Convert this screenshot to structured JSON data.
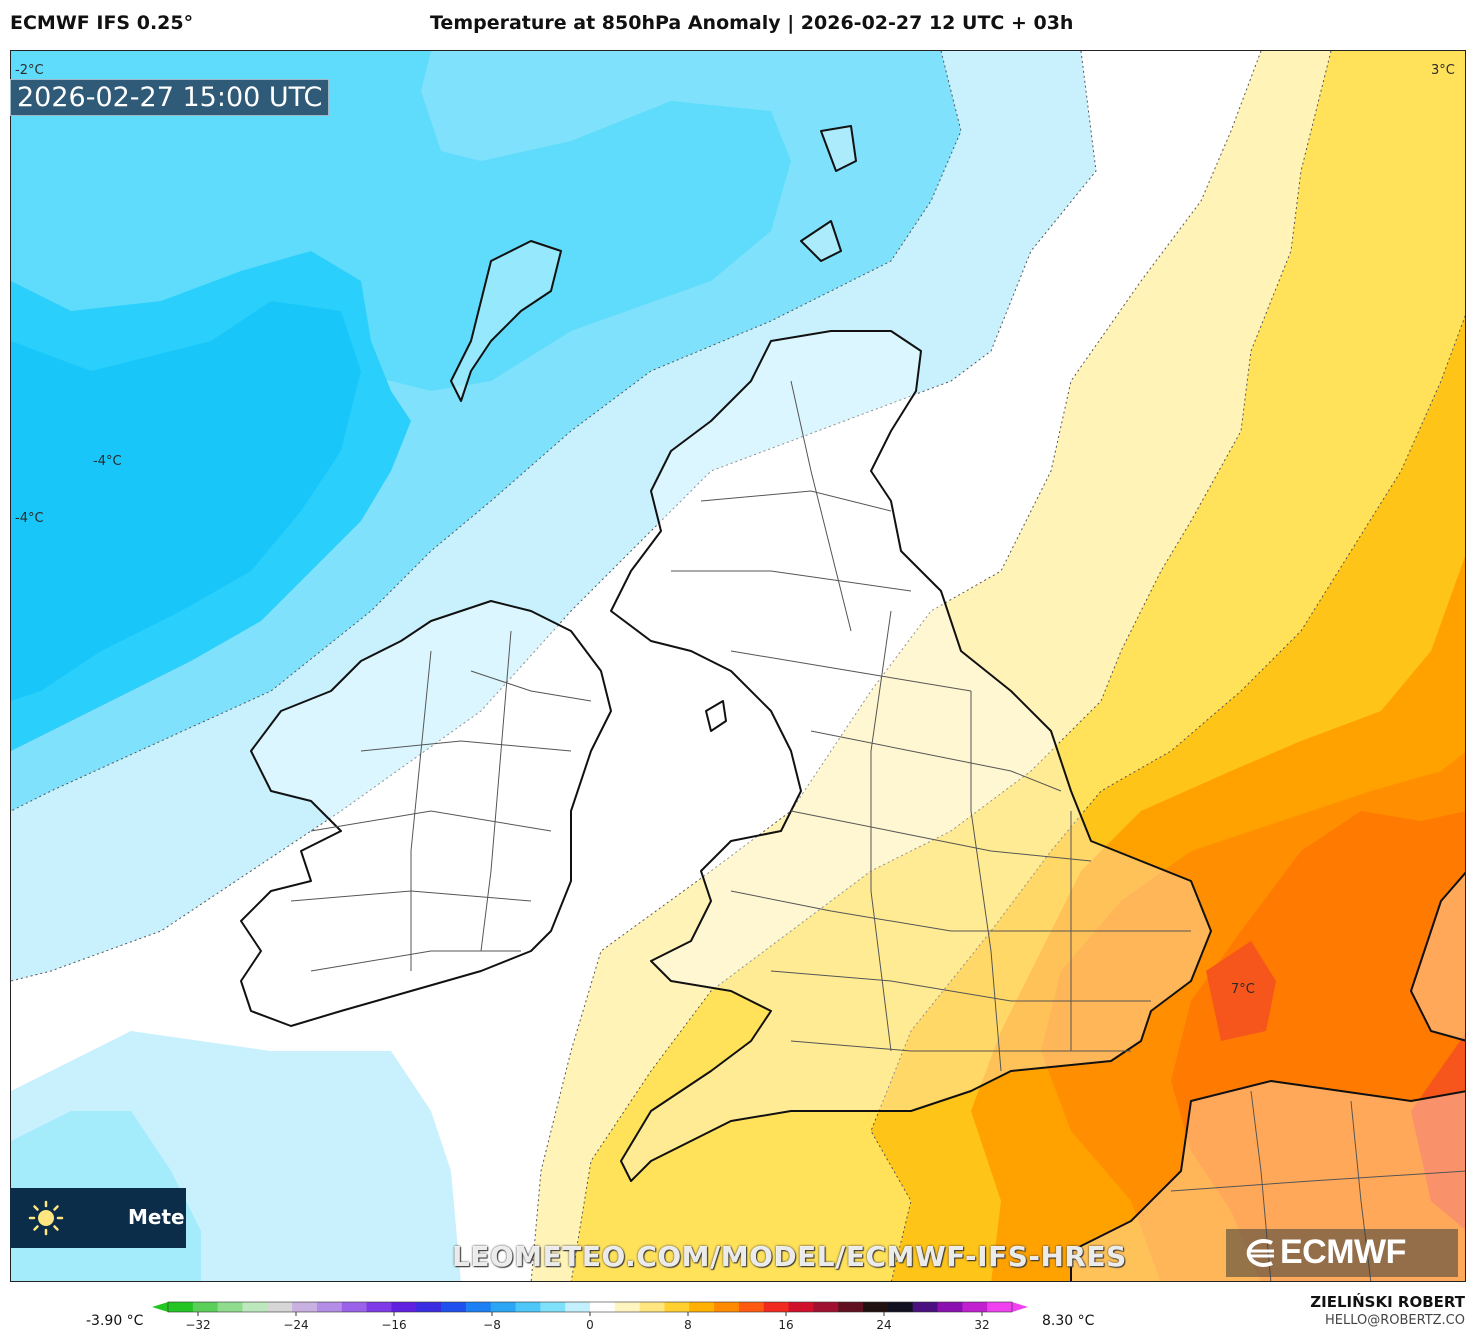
{
  "header": {
    "model": "ECMWF IFS 0.25°",
    "title": "Temperature at 850hPa Anomaly | 2026-02-27 12 UTC + 03h"
  },
  "map": {
    "valid_time": "2026-02-27 15:00 UTC",
    "contour_labels": [
      "-2°C",
      "3°C",
      "-4°C",
      "-4°C",
      "7°C"
    ],
    "watermark": "LEOMETEO.COM/MODEL/ECMWF-IFS-HRES"
  },
  "branding": {
    "box_text": "Meteo",
    "sun_icon": "sun-icon",
    "ecmwf_logo": "ECMWF"
  },
  "colorbar": {
    "min_label": "-3.90 °C",
    "max_label": "8.30 °C",
    "ticks": [
      "−32",
      "−24",
      "−16",
      "−8",
      "0",
      "8",
      "16",
      "24",
      "32"
    ],
    "colors": [
      "#22c522",
      "#5ad05a",
      "#8fdc8f",
      "#bde8bd",
      "#d6d6d6",
      "#c8b0e0",
      "#b48ee6",
      "#9a62e8",
      "#7d3ae6",
      "#5f20e0",
      "#3a2ce0",
      "#1f50ee",
      "#1c7ff4",
      "#2aa6f5",
      "#4cc7f7",
      "#7fe0fa",
      "#c3f0fd",
      "#ffffff",
      "#fff5c0",
      "#ffe680",
      "#ffd030",
      "#ffb000",
      "#ff8a00",
      "#ff5a10",
      "#f02a20",
      "#d0102a",
      "#a01030",
      "#601020",
      "#201010",
      "#101020",
      "#4a1080",
      "#8a10b0",
      "#c020d0",
      "#f040f0"
    ]
  },
  "credit": {
    "name": "ZIELIŃSKI ROBERT",
    "email": "HELLO@ROBERTZ.CO"
  }
}
